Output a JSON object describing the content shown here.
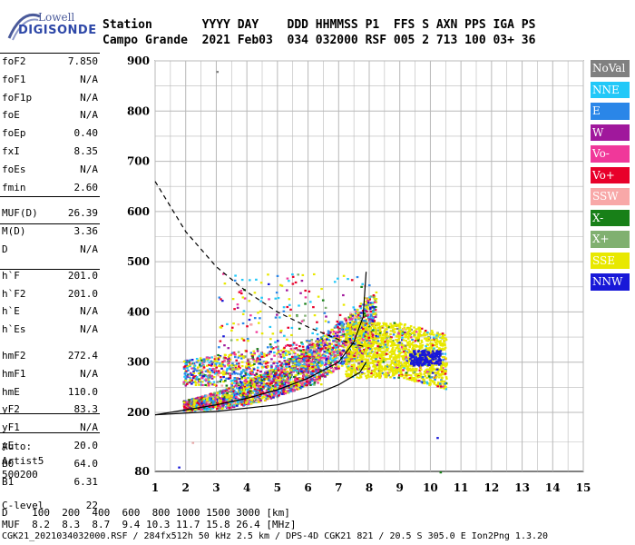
{
  "logo": {
    "line1": "Lowell",
    "line2": "DIGISONDE"
  },
  "header": {
    "labels": "Station       YYYY DAY    DDD HHMMSS P1  FFS S AXN PPS IGA PS",
    "values": "Campo Grande  2021 Feb03  034 032000 RSF 005 2 713 100 03+ 36"
  },
  "params": [
    {
      "label": "foF2",
      "value": "7.850"
    },
    {
      "label": "foF1",
      "value": "N/A"
    },
    {
      "label": "foF1p",
      "value": "N/A"
    },
    {
      "label": "foE",
      "value": "N/A"
    },
    {
      "label": "foEp",
      "value": "0.40"
    },
    {
      "label": "fxI",
      "value": "8.35"
    },
    {
      "label": "foEs",
      "value": "N/A"
    },
    {
      "label": "fmin",
      "value": "2.60"
    },
    {
      "label": "MUF(D)",
      "value": "26.39"
    },
    {
      "label": "M(D)",
      "value": "3.36"
    },
    {
      "label": "D",
      "value": "N/A"
    },
    {
      "label": "h`F",
      "value": "201.0"
    },
    {
      "label": "h`F2",
      "value": "201.0"
    },
    {
      "label": "h`E",
      "value": "N/A"
    },
    {
      "label": "h`Es",
      "value": "N/A"
    },
    {
      "label": "hmF2",
      "value": "272.4"
    },
    {
      "label": "hmF1",
      "value": "N/A"
    },
    {
      "label": "hmE",
      "value": "110.0"
    },
    {
      "label": "yF2",
      "value": "83.3"
    },
    {
      "label": "yF1",
      "value": "N/A"
    },
    {
      "label": "yE",
      "value": "20.0"
    },
    {
      "label": "B0",
      "value": "64.0"
    },
    {
      "label": "B1",
      "value": "6.31"
    },
    {
      "label": "C-level",
      "value": "22"
    }
  ],
  "auto": {
    "l1": "Auto:",
    "l2": "Artist5",
    "l3": "500200"
  },
  "legend": [
    {
      "label": "NoVal",
      "color": "#808080"
    },
    {
      "label": "NNE",
      "color": "#22c8f8"
    },
    {
      "label": "E",
      "color": "#2a86e8"
    },
    {
      "label": "W",
      "color": "#a0189c"
    },
    {
      "label": "Vo-",
      "color": "#f0389a"
    },
    {
      "label": "Vo+",
      "color": "#e8002a"
    },
    {
      "label": "SSW",
      "color": "#f8a8a8"
    },
    {
      "label": "X-",
      "color": "#188018"
    },
    {
      "label": "X+",
      "color": "#80b070"
    },
    {
      "label": "SSE",
      "color": "#e8e800"
    },
    {
      "label": "NNW",
      "color": "#1818d8"
    }
  ],
  "chart_data": {
    "type": "scatter",
    "xlim": [
      1,
      15
    ],
    "ylim": [
      80,
      900
    ],
    "x_ticks": [
      "1",
      "2",
      "3",
      "4",
      "5",
      "6",
      "7",
      "8",
      "9",
      "10",
      "11",
      "12",
      "13",
      "14",
      "15"
    ],
    "y_ticks": [
      "900",
      "800",
      "700",
      "600",
      "500",
      "400",
      "300",
      "200",
      "80"
    ],
    "grid": true,
    "trace_dashed": [
      [
        1,
        660
      ],
      [
        2,
        560
      ],
      [
        3,
        490
      ],
      [
        4,
        440
      ],
      [
        5,
        400
      ],
      [
        6,
        370
      ],
      [
        7,
        345
      ],
      [
        7.9,
        330
      ]
    ],
    "trace_o": [
      [
        1,
        195
      ],
      [
        2,
        205
      ],
      [
        3,
        215
      ],
      [
        4,
        228
      ],
      [
        5,
        245
      ],
      [
        6,
        268
      ],
      [
        7,
        300
      ],
      [
        7.5,
        340
      ],
      [
        7.8,
        390
      ],
      [
        7.9,
        480
      ]
    ],
    "trace_x": [
      [
        1,
        195
      ],
      [
        3,
        202
      ],
      [
        5,
        215
      ],
      [
        6,
        230
      ],
      [
        7,
        255
      ],
      [
        7.7,
        280
      ],
      [
        7.9,
        300
      ]
    ]
  },
  "footer": {
    "d_row": "D    100  200  400  600  800 1000 1500 3000 [km]",
    "muf_row": "MUF  8.2  8.3  8.7  9.4 10.3 11.7 15.8 26.4 [MHz]",
    "info": "CGK21_2021034032000.RSF / 284fx512h 50 kHz 2.5 km / DPS-4D CGK21 821 / 20.5 S 305.0 E Ion2Png 1.3.20"
  }
}
